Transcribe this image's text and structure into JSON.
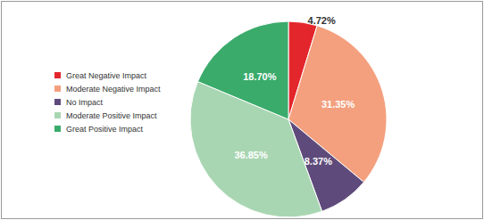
{
  "chart_data": {
    "type": "pie",
    "categories": [
      "Great Negative Impact",
      "Moderate Negative Impact",
      "No Impact",
      "Moderate Positive Impact",
      "Great Positive Impact"
    ],
    "values": [
      4.72,
      31.35,
      8.37,
      36.85,
      18.7
    ],
    "value_labels": [
      "4.72%",
      "31.35%",
      "8.37%",
      "36.85%",
      "18.70%"
    ],
    "colors": [
      "#e3262c",
      "#f4a07e",
      "#5f4b7b",
      "#a9d6b2",
      "#3aab6b"
    ],
    "data_labels": true,
    "legend": "left"
  }
}
